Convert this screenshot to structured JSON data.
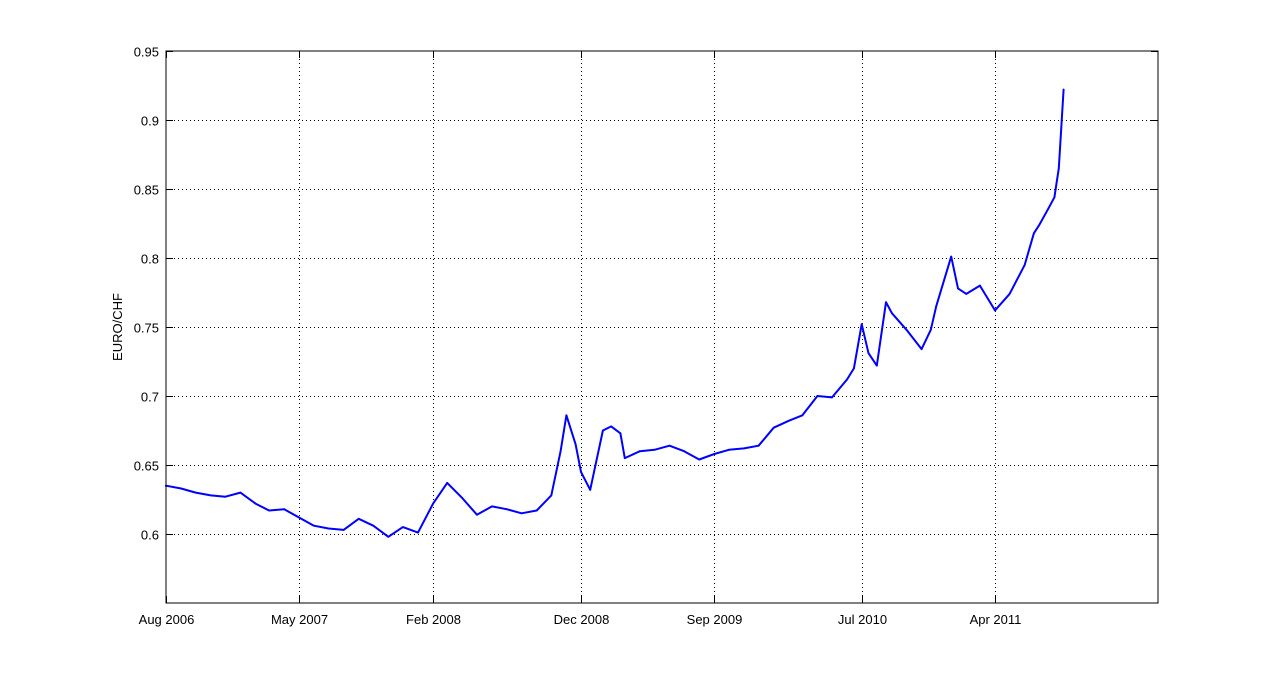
{
  "chart_data": {
    "type": "line",
    "title": "",
    "xlabel": "",
    "ylabel": "EURO/CHF",
    "xlim": [
      "2006-08-01",
      "2012-03-01"
    ],
    "ylim": [
      0.55,
      0.95
    ],
    "grid": true,
    "x_ticks": [
      "2006-08-01",
      "2007-05-01",
      "2008-02-01",
      "2008-12-01",
      "2009-09-01",
      "2010-07-01",
      "2011-04-01"
    ],
    "x_tick_labels": [
      "Aug 2006",
      "May 2007",
      "Feb 2008",
      "Dec 2008",
      "Sep 2009",
      "Jul 2010",
      "Apr 2011"
    ],
    "y_ticks": [
      0.6,
      0.65,
      0.7,
      0.75,
      0.8,
      0.85,
      0.9,
      0.95
    ],
    "y_tick_labels": [
      "0.6",
      "0.65",
      "0.7",
      "0.75",
      "0.8",
      "0.85",
      "0.9",
      "0.95"
    ],
    "colors": {
      "line": "#0000ff",
      "axes": "#000000"
    },
    "series": [
      {
        "x": [
          "2006-08-01",
          "2006-09-01",
          "2006-10-01",
          "2006-11-01",
          "2006-12-01",
          "2007-01-01",
          "2007-02-01",
          "2007-03-01",
          "2007-04-01",
          "2007-05-01",
          "2007-06-01",
          "2007-07-01",
          "2007-08-01",
          "2007-09-01",
          "2007-10-01",
          "2007-11-01",
          "2007-12-01",
          "2008-01-01",
          "2008-02-01",
          "2008-03-01",
          "2008-04-01",
          "2008-05-01",
          "2008-06-01",
          "2008-07-01",
          "2008-08-01",
          "2008-09-01",
          "2008-10-01",
          "2008-10-20",
          "2008-11-01",
          "2008-11-20",
          "2008-12-01",
          "2008-12-20",
          "2009-01-15",
          "2009-02-01",
          "2009-02-20",
          "2009-03-01",
          "2009-04-01",
          "2009-05-01",
          "2009-06-01",
          "2009-07-01",
          "2009-08-01",
          "2009-09-01",
          "2009-10-01",
          "2009-11-01",
          "2009-12-01",
          "2010-01-01",
          "2010-02-01",
          "2010-03-01",
          "2010-04-01",
          "2010-05-01",
          "2010-06-01",
          "2010-06-15",
          "2010-07-01",
          "2010-07-15",
          "2010-08-01",
          "2010-08-20",
          "2010-09-01",
          "2010-10-01",
          "2010-11-01",
          "2010-11-20",
          "2010-12-01",
          "2011-01-01",
          "2011-01-15",
          "2011-02-01",
          "2011-03-01",
          "2011-04-01",
          "2011-05-01",
          "2011-06-01",
          "2011-06-20",
          "2011-07-01",
          "2011-07-20",
          "2011-08-01",
          "2011-08-10",
          "2011-08-20"
        ],
        "values": [
          0.635,
          0.633,
          0.63,
          0.628,
          0.627,
          0.63,
          0.622,
          0.617,
          0.618,
          0.612,
          0.606,
          0.604,
          0.603,
          0.611,
          0.606,
          0.598,
          0.605,
          0.601,
          0.622,
          0.637,
          0.626,
          0.614,
          0.62,
          0.618,
          0.615,
          0.617,
          0.628,
          0.66,
          0.686,
          0.665,
          0.645,
          0.632,
          0.675,
          0.678,
          0.673,
          0.655,
          0.66,
          0.661,
          0.664,
          0.66,
          0.654,
          0.658,
          0.661,
          0.662,
          0.664,
          0.677,
          0.682,
          0.686,
          0.7,
          0.699,
          0.712,
          0.72,
          0.752,
          0.731,
          0.722,
          0.768,
          0.76,
          0.748,
          0.734,
          0.748,
          0.765,
          0.801,
          0.778,
          0.774,
          0.78,
          0.762,
          0.774,
          0.795,
          0.818,
          0.824,
          0.836,
          0.844,
          0.865,
          0.922
        ]
      }
    ]
  }
}
